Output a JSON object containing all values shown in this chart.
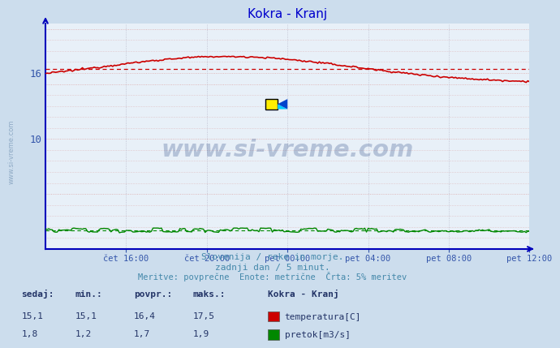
{
  "title": "Kokra - Kranj",
  "title_color": "#0000cc",
  "bg_color": "#ccdded",
  "plot_bg_color": "#e8f0f8",
  "xlabel_ticks": [
    "čet 16:00",
    "čet 20:00",
    "pet 00:00",
    "pet 04:00",
    "pet 08:00",
    "pet 12:00"
  ],
  "ylim": [
    0,
    20.5
  ],
  "xlim": [
    0,
    288
  ],
  "subtitle_lines": [
    "Slovenija / reke in morje.",
    "zadnji dan / 5 minut.",
    "Meritve: povprečne  Enote: metrične  Črta: 5% meritev"
  ],
  "subtitle_color": "#4488aa",
  "watermark": "www.si-vreme.com",
  "watermark_color": "#1a3a7a",
  "watermark_alpha": 0.25,
  "watermark_logo_yellow": "#ffee00",
  "watermark_logo_cyan": "#00ccff",
  "watermark_logo_blue": "#0044cc",
  "temp_color": "#cc0000",
  "temp_avg": 16.4,
  "temp_min": 15.1,
  "temp_max": 17.5,
  "temp_sedaj": 15.1,
  "flow_color": "#008800",
  "flow_avg": 1.7,
  "flow_min": 1.2,
  "flow_max": 1.9,
  "flow_sedaj": 1.8,
  "axis_color": "#0000bb",
  "tick_color": "#3355aa",
  "legend_title": "Kokra - Kranj",
  "legend_labels": [
    "temperatura[C]",
    "pretok[m3/s]"
  ],
  "table_headers": [
    "sedaj:",
    "min.:",
    "povpr.:",
    "maks.:"
  ],
  "table_data": [
    [
      15.1,
      15.1,
      16.4,
      17.5
    ],
    [
      1.8,
      1.2,
      1.7,
      1.9
    ]
  ],
  "n_points": 289
}
